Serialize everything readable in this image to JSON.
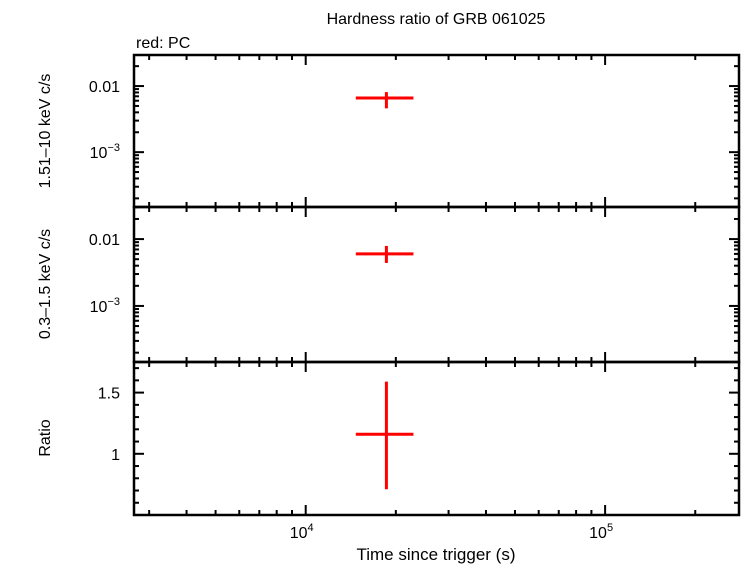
{
  "chart_data": {
    "type": "scatter",
    "title": "Hardness ratio of GRB 061025",
    "legend_note": "red: PC",
    "xlabel": "Time since trigger (s)",
    "xscale": "log",
    "xlim": [
      2670,
      280000
    ],
    "xticks": [
      {
        "value": 10000,
        "label": "10",
        "exp": "4"
      },
      {
        "value": 100000,
        "label": "10",
        "exp": "5"
      }
    ],
    "color": "#ff0000",
    "panels": [
      {
        "ylabel": "1.51–10 keV c/s",
        "yscale": "log",
        "ylim": [
          0.000148,
          0.0295
        ],
        "yticks": [
          {
            "value": 0.01,
            "label": "0.01",
            "exp": ""
          },
          {
            "value": 0.001,
            "label": "10",
            "exp": "−3"
          }
        ],
        "points": [
          {
            "x": 18600,
            "xlo": 14700,
            "xhi": 22900,
            "y": 0.0066,
            "ylo": 0.0046,
            "yhi": 0.0081
          }
        ]
      },
      {
        "ylabel": "0.3–1.5 keV c/s",
        "yscale": "log",
        "ylim": [
          0.000145,
          0.0302
        ],
        "yticks": [
          {
            "value": 0.01,
            "label": "0.01",
            "exp": ""
          },
          {
            "value": 0.001,
            "label": "10",
            "exp": "−3"
          }
        ],
        "points": [
          {
            "x": 18600,
            "xlo": 14700,
            "xhi": 22900,
            "y": 0.006,
            "ylo": 0.0044,
            "yhi": 0.0079
          }
        ]
      },
      {
        "ylabel": "Ratio",
        "yscale": "linear",
        "ylim": [
          0.5,
          1.75
        ],
        "yticks": [
          {
            "value": 1.5,
            "label": "1.5",
            "exp": ""
          },
          {
            "value": 1,
            "label": "1",
            "exp": ""
          }
        ],
        "points": [
          {
            "x": 18600,
            "xlo": 14700,
            "xhi": 22900,
            "y": 1.16,
            "ylo": 0.71,
            "yhi": 1.59
          }
        ]
      }
    ]
  }
}
